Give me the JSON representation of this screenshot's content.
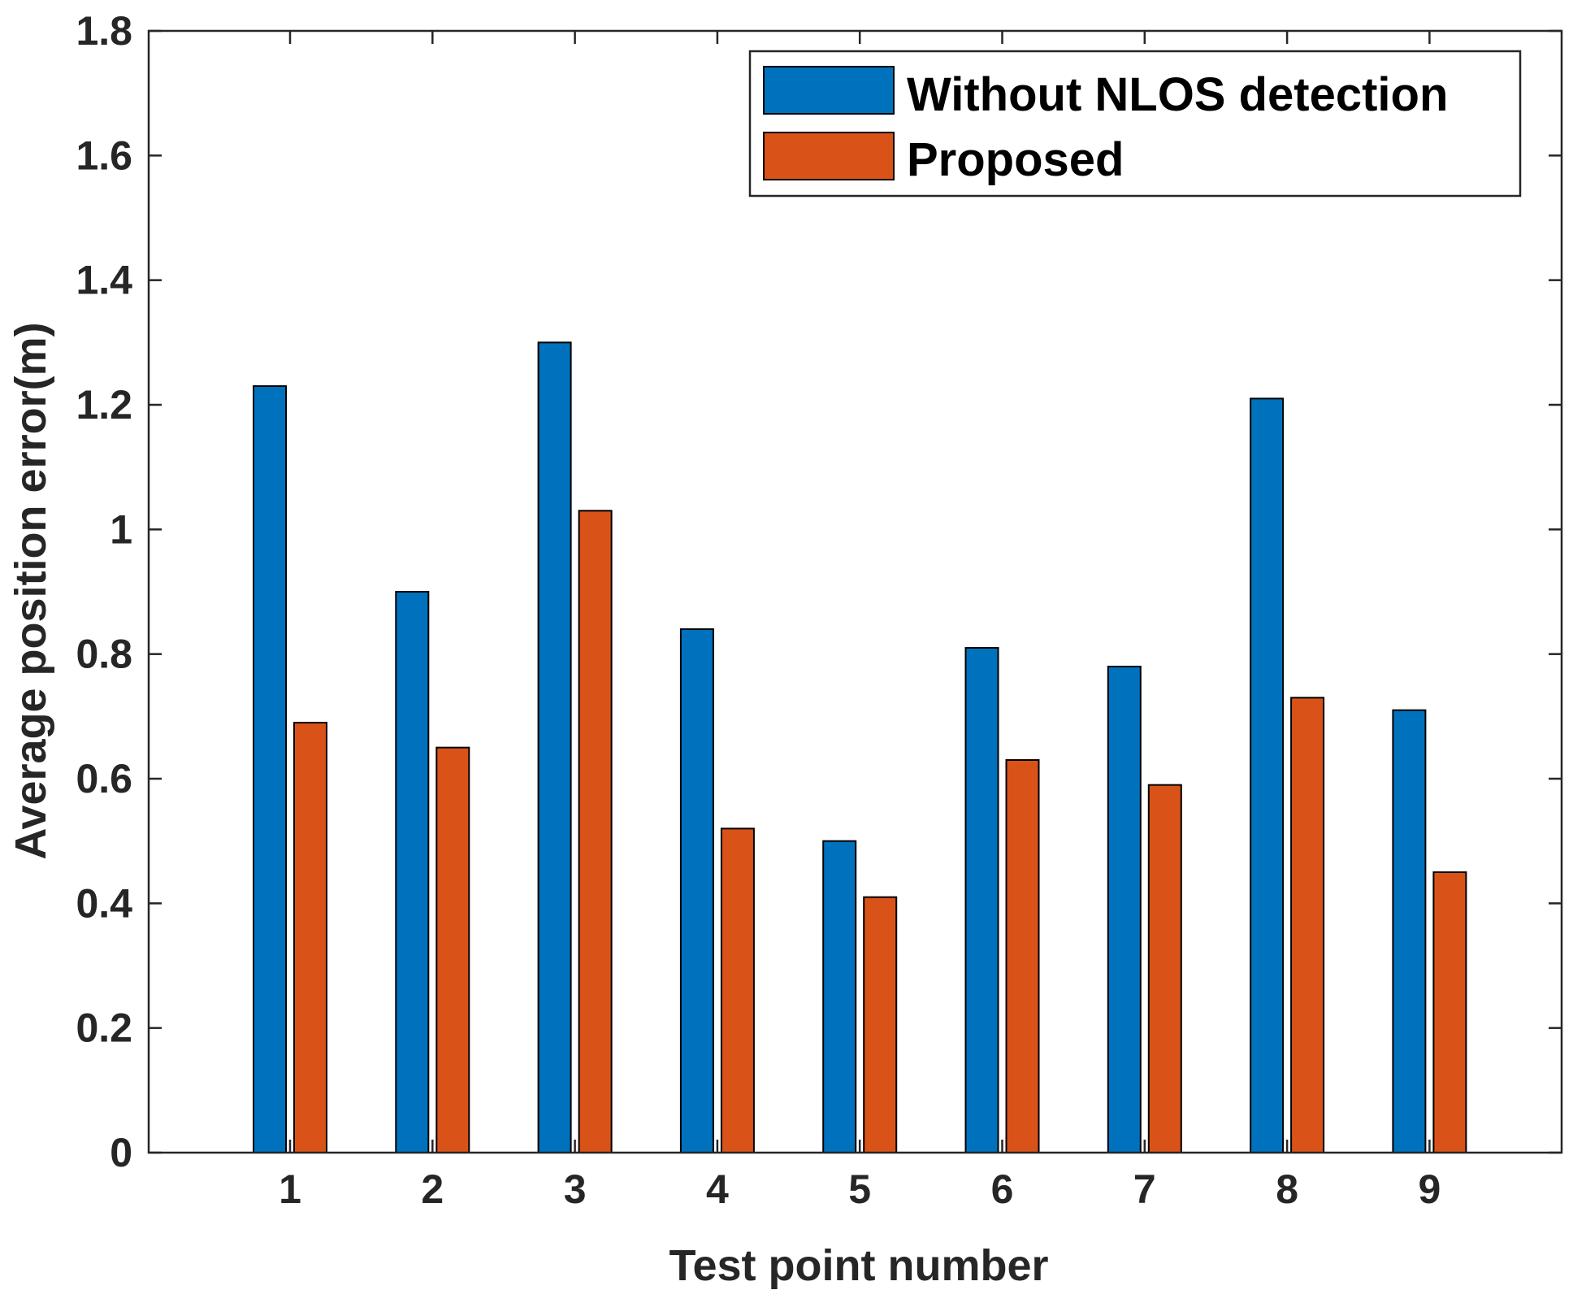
{
  "chart_data": {
    "type": "bar",
    "title": "",
    "xlabel": "Test point number",
    "ylabel": "Average position error(m)",
    "categories": [
      "1",
      "2",
      "3",
      "4",
      "5",
      "6",
      "7",
      "8",
      "9"
    ],
    "ylim": [
      0,
      1.8
    ],
    "yticks": [
      "0",
      "0.2",
      "0.4",
      "0.6",
      "0.8",
      "1",
      "1.2",
      "1.4",
      "1.6",
      "1.8"
    ],
    "grid": false,
    "legend_position": "top-right",
    "series": [
      {
        "name": "Without NLOS detection",
        "color": "#0072BD",
        "values": [
          1.23,
          0.9,
          1.3,
          0.84,
          0.5,
          0.81,
          0.78,
          1.21,
          0.71
        ]
      },
      {
        "name": "Proposed",
        "color": "#D95319",
        "values": [
          0.69,
          0.65,
          1.03,
          0.52,
          0.41,
          0.63,
          0.59,
          0.73,
          0.45
        ]
      }
    ]
  }
}
